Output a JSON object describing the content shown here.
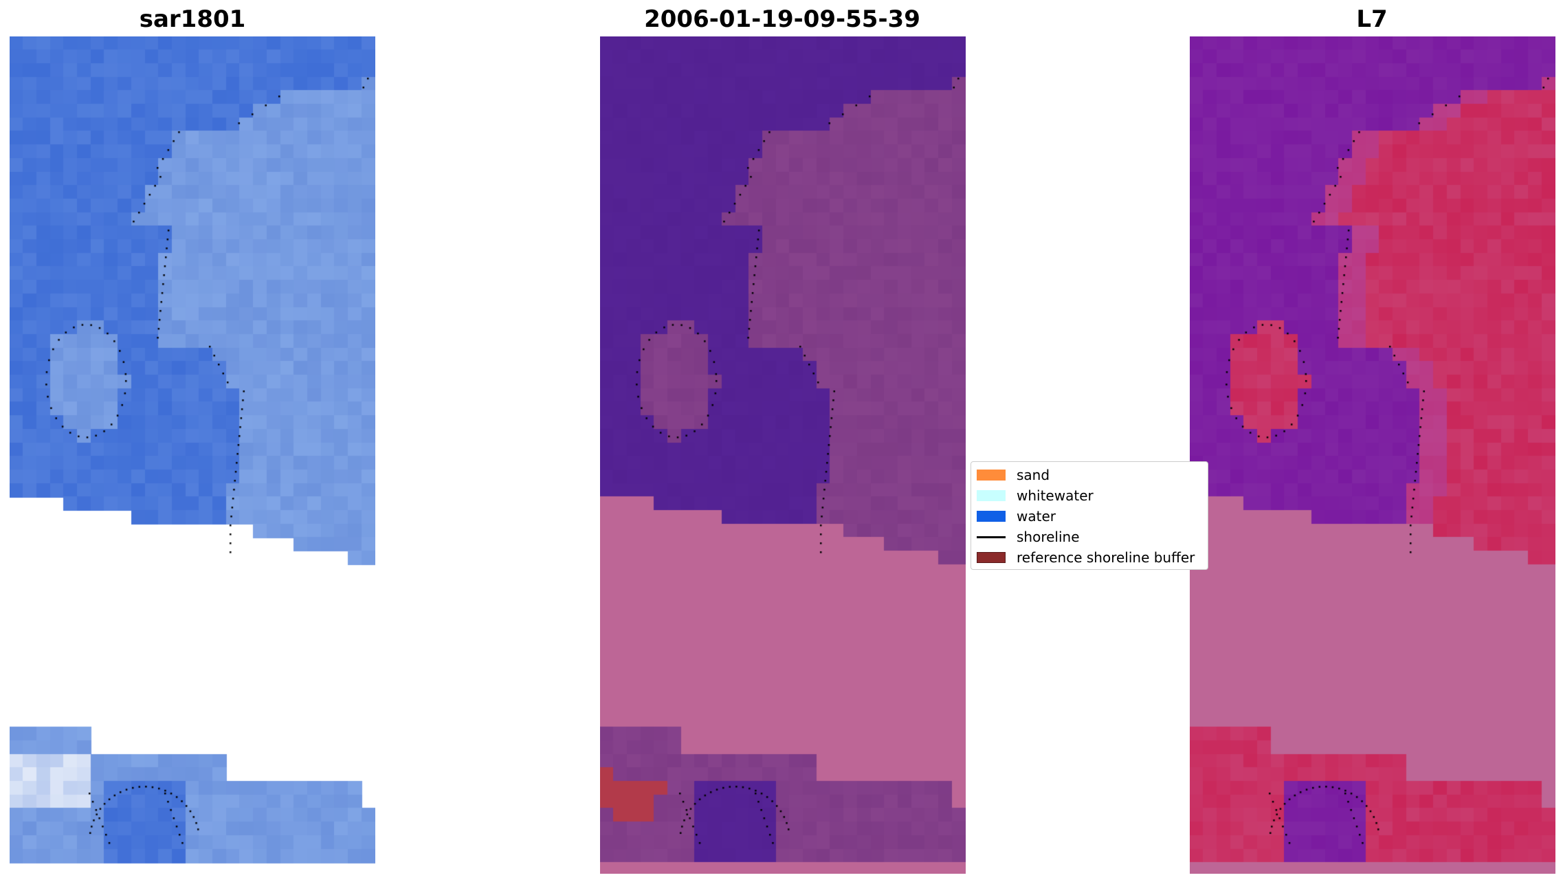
{
  "panels": [
    {
      "id": "rgb",
      "title": "sar1801"
    },
    {
      "id": "classified",
      "title": "2006-01-19-09-55-39"
    },
    {
      "id": "index",
      "title": "L7"
    }
  ],
  "legend": {
    "items": [
      {
        "label": "sand",
        "color": "#ff8c3a",
        "kind": "patch"
      },
      {
        "label": "whitewater",
        "color": "#c8ffff",
        "kind": "patch"
      },
      {
        "label": "water",
        "color": "#1060e6",
        "kind": "patch"
      },
      {
        "label": "shoreline",
        "color": "#000000",
        "kind": "line"
      },
      {
        "label": "reference shoreline buffer",
        "color": "#8b2a2a",
        "kind": "patch"
      }
    ]
  },
  "colors": {
    "rgb_water": "#3f6ed6",
    "rgb_land": "#6d93dd",
    "class_water": "#532192",
    "class_land": "#7e3b86",
    "class_mask": "#bd6696",
    "class_red": "#b23a4a",
    "index_water": "#7a1aa0",
    "index_land": "#c92659",
    "index_mask": "#bd6696"
  }
}
